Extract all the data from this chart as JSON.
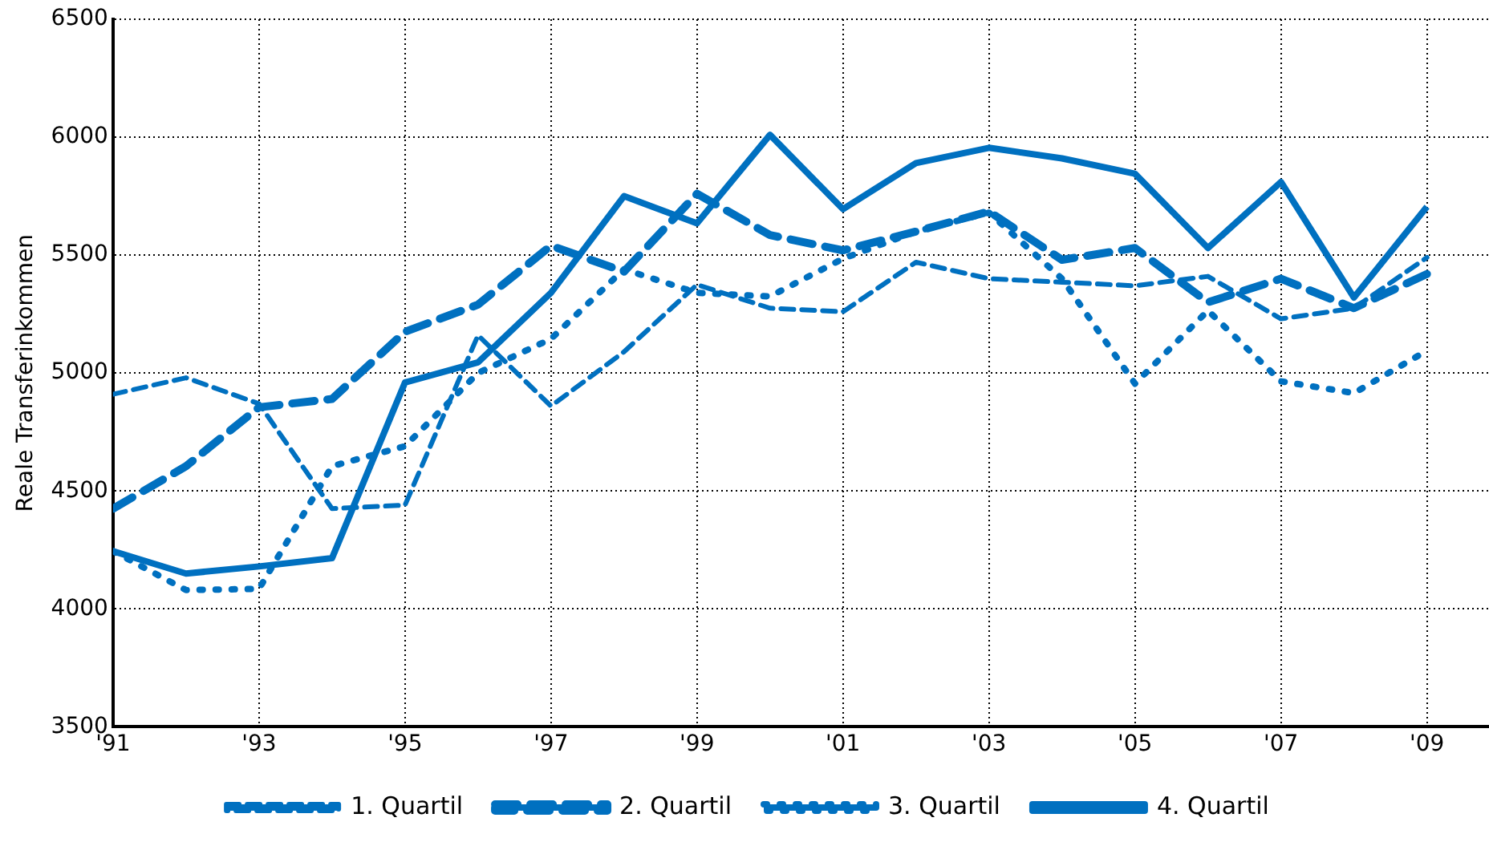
{
  "chart_data": {
    "type": "line",
    "ylabel": "Reale Transferinkommen",
    "x": [
      1991,
      1992,
      1993,
      1994,
      1995,
      1996,
      1997,
      1998,
      1999,
      2000,
      2001,
      2002,
      2003,
      2004,
      2005,
      2006,
      2007,
      2008,
      2009
    ],
    "xlim": [
      1991,
      2009.85
    ],
    "xticks": [
      {
        "value": 1991,
        "label": "'91"
      },
      {
        "value": 1993,
        "label": "'93"
      },
      {
        "value": 1995,
        "label": "'95"
      },
      {
        "value": 1997,
        "label": "'97"
      },
      {
        "value": 1999,
        "label": "'99"
      },
      {
        "value": 2001,
        "label": "'01"
      },
      {
        "value": 2003,
        "label": "'03"
      },
      {
        "value": 2005,
        "label": "'05"
      },
      {
        "value": 2007,
        "label": "'07"
      },
      {
        "value": 2009,
        "label": "'09"
      }
    ],
    "ylim": [
      3500,
      6500
    ],
    "yticks": [
      3500,
      4000,
      4500,
      5000,
      5500,
      6000,
      6500
    ],
    "grid": true,
    "legend": "bottom",
    "marker": "none",
    "series": [
      {
        "name": "1. Quartil",
        "color": "#0070c0",
        "line_style": "dashed",
        "values": [
          4910,
          4980,
          4870,
          4425,
          4440,
          5160,
          4860,
          5090,
          5375,
          5275,
          5260,
          5470,
          5400,
          5385,
          5370,
          5410,
          5230,
          5275,
          5490
        ]
      },
      {
        "name": "2. Quartil",
        "color": "#0070c0",
        "line_style": "dashed",
        "values": [
          4425,
          4605,
          4855,
          4890,
          5175,
          5290,
          5540,
          5430,
          5760,
          5585,
          5520,
          5600,
          5685,
          5480,
          5530,
          5300,
          5400,
          5275,
          5420
        ]
      },
      {
        "name": "3. Quartil",
        "color": "#0070c0",
        "line_style": "dotted",
        "values": [
          4245,
          4080,
          4085,
          4605,
          4690,
          5000,
          5145,
          5440,
          5340,
          5325,
          5485,
          5600,
          5680,
          5400,
          4955,
          5265,
          4965,
          4915,
          5095
        ]
      },
      {
        "name": "4. Quartil",
        "color": "#0070c0",
        "line_style": "solid",
        "values": [
          4245,
          4150,
          4180,
          4215,
          4960,
          5045,
          5340,
          5750,
          5635,
          6010,
          5695,
          5890,
          5955,
          5910,
          5845,
          5530,
          5810,
          5320,
          5705
        ]
      }
    ]
  }
}
